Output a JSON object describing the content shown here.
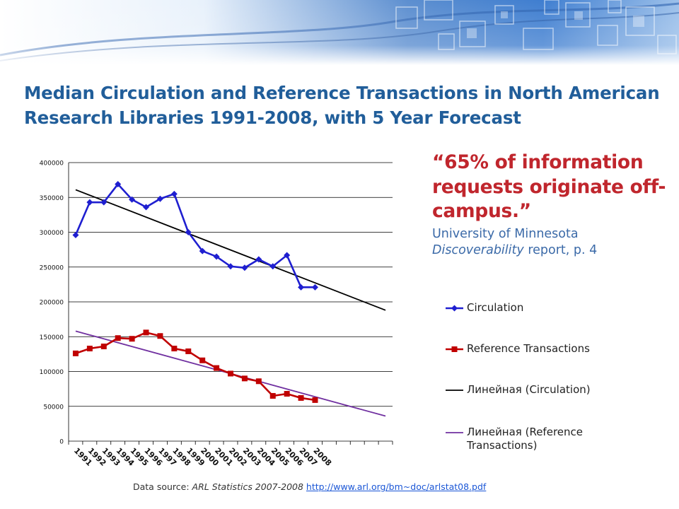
{
  "title": "Median Circulation and Reference Transactions in North American Research Libraries 1991-2008, with 5 Year Forecast",
  "quote": {
    "text": "“65% of information requests originate off-campus.”",
    "source_line1": "University of Minnesota",
    "source_italic": "Discoverability",
    "source_rest": " report, p. 4"
  },
  "footer": {
    "prefix": "Data source: ",
    "italic": "ARL Statistics 2007-2008",
    "link": "http://www.arl.org/bm~doc/arlstat08.pdf"
  },
  "colors": {
    "title": "#215e9a",
    "quote": "#c0262d",
    "circulation": "#1f1fd0",
    "reference": "#c00000",
    "trend_circulation": "#000000",
    "trend_reference": "#7030a0"
  },
  "chart_data": {
    "type": "line",
    "x": [
      "1991",
      "1992",
      "1993",
      "1994",
      "1995",
      "1996",
      "1997",
      "1998",
      "1999",
      "2000",
      "2001",
      "2002",
      "2003",
      "2004",
      "2005",
      "2006",
      "2007",
      "2008"
    ],
    "ylim": [
      0,
      400000
    ],
    "yticks": [
      "0",
      "50000",
      "100000",
      "150000",
      "200000",
      "250000",
      "300000",
      "350000",
      "400000"
    ],
    "forecast_periods": 5,
    "grid": true,
    "legend_position": "right",
    "series": [
      {
        "name": "Circulation",
        "marker": "diamond",
        "values": [
          296000,
          343000,
          343000,
          369000,
          347000,
          336000,
          348000,
          355000,
          300000,
          273000,
          265000,
          251000,
          249000,
          261000,
          251000,
          267000,
          221000,
          221000
        ]
      },
      {
        "name": "Reference Transactions",
        "marker": "square",
        "values": [
          126000,
          133000,
          136000,
          148000,
          147000,
          156000,
          151000,
          133000,
          129000,
          116000,
          105000,
          97000,
          90000,
          86000,
          65000,
          68000,
          62000,
          59000
        ]
      }
    ],
    "trendlines": [
      {
        "name": "Линейная (Circulation)",
        "of": "Circulation",
        "start": 361000,
        "end": 188000
      },
      {
        "name": "Линейная (Reference Transactions)",
        "of": "Reference Transactions",
        "start": 158000,
        "end": 36000
      }
    ]
  }
}
